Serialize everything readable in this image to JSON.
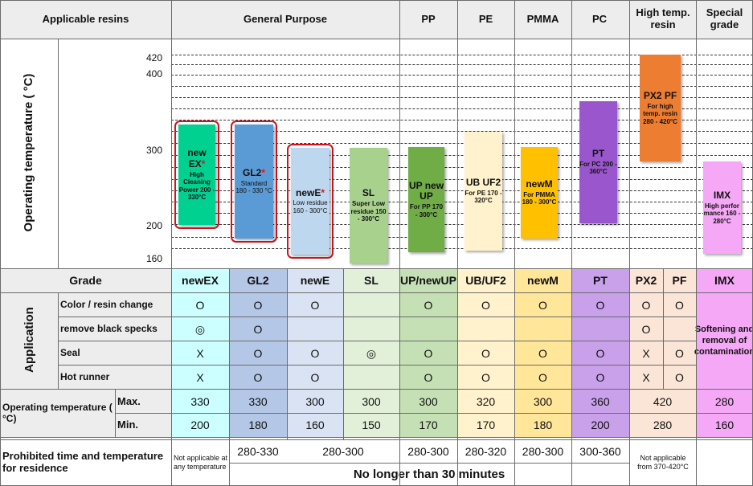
{
  "header": {
    "applicable": "Applicable resins",
    "general": "General Purpose",
    "pp": "PP",
    "pe": "PE",
    "pmma": "PMMA",
    "pc": "PC",
    "high": "High temp. resin",
    "special": "Special grade"
  },
  "chart": {
    "ylabel": "Operating temperature ( °C)",
    "ticks": [
      "420",
      "400",
      "300",
      "200",
      "160"
    ],
    "bars": {
      "newex": {
        "name": "new EX",
        "star": "*",
        "desc": "High Cleaning Power 200 - 330°C",
        "color": "#00d090",
        "circled": true
      },
      "gl2": {
        "name": "GL2",
        "star": "*",
        "desc": "Standard 180 - 330 °C",
        "color": "#5b9bd5",
        "circled": true
      },
      "newe": {
        "name": "newE",
        "star": "*",
        "desc": "Low residue 160 - 300°C",
        "color": "#bdd7ee",
        "circled": true
      },
      "sl": {
        "name": "SL",
        "star": "",
        "desc": "Super Low residue 150 - 300°C",
        "color": "#a9d18e",
        "circled": false
      },
      "up": {
        "name": "UP new UP",
        "star": "",
        "desc": "For PP 170 - 300°C",
        "color": "#70ad47",
        "circled": false
      },
      "ub": {
        "name": "UB UF2",
        "star": "",
        "desc": "For PE 170 - 320°C",
        "color": "#fff2cc",
        "circled": false
      },
      "newm": {
        "name": "newM",
        "star": "",
        "desc": "For PMMA 180 - 300°C",
        "color": "#ffc000",
        "circled": false
      },
      "pt": {
        "name": "PT",
        "star": "",
        "desc": "For PC 200 - 360°C",
        "color": "#9a57cd",
        "circled": false
      },
      "px2": {
        "name": "PX2 PF",
        "star": "",
        "desc": "For high temp. resin 280 - 420°C",
        "color": "#ed7d31",
        "circled": false
      },
      "imx": {
        "name": "IMX",
        "star": "",
        "desc": "High perfor mance 160 - 280°C",
        "color": "#f5a8f5",
        "circled": false
      }
    }
  },
  "grade": {
    "label": "Grade",
    "cols": [
      "newEX",
      "GL2",
      "newE",
      "SL",
      "UP/newUP",
      "UB/UF2",
      "newM",
      "PT",
      "PX2",
      "PF",
      "IMX"
    ]
  },
  "application": {
    "label": "Application",
    "rows": [
      {
        "label": "Color / resin change",
        "vals": [
          "O",
          "O",
          "O",
          "",
          "O",
          "O",
          "O",
          "O",
          "O",
          "O"
        ]
      },
      {
        "label": "remove black specks",
        "vals": [
          "◎",
          "O",
          "",
          "",
          "",
          "",
          "",
          "",
          "O",
          ""
        ]
      },
      {
        "label": "Seal",
        "vals": [
          "X",
          "O",
          "O",
          "◎",
          "O",
          "O",
          "O",
          "O",
          "X",
          "O"
        ]
      },
      {
        "label": "Hot runner",
        "vals": [
          "X",
          "O",
          "O",
          "",
          "O",
          "O",
          "O",
          "O",
          "X",
          "O"
        ]
      }
    ],
    "imx_note": "Softening and removal of contamination"
  },
  "optemp": {
    "label": "Operating temperature ( °C)",
    "max_label": "Max.",
    "min_label": "Min.",
    "max": [
      "330",
      "330",
      "300",
      "300",
      "300",
      "320",
      "300",
      "360",
      "420",
      "280"
    ],
    "min": [
      "200",
      "180",
      "160",
      "150",
      "170",
      "170",
      "180",
      "200",
      "280",
      "160"
    ]
  },
  "prohibited": {
    "label": "Prohibited time and temperature for residence",
    "na_left": "Not applicable at any temperature",
    "gl2": "280-330",
    "newe_sl": "280-300",
    "up": "280-300",
    "ub": "280-320",
    "newm": "280-300",
    "pt": "300-360",
    "na_right": "Not applicable from 370-420°C",
    "footer": "No longer than 30 minutes"
  },
  "colors": {
    "header_bg": "#ededed",
    "newex": "#ccffff",
    "gl2": "#b4c7e7",
    "newe": "#dae3f3",
    "sl": "#e2f0d9",
    "up": "#c5e0b4",
    "ub": "#fff2cc",
    "newm": "#ffe699",
    "pt": "#c9a0ea",
    "px": "#fbe5d6",
    "imx": "#f5a8f5"
  }
}
